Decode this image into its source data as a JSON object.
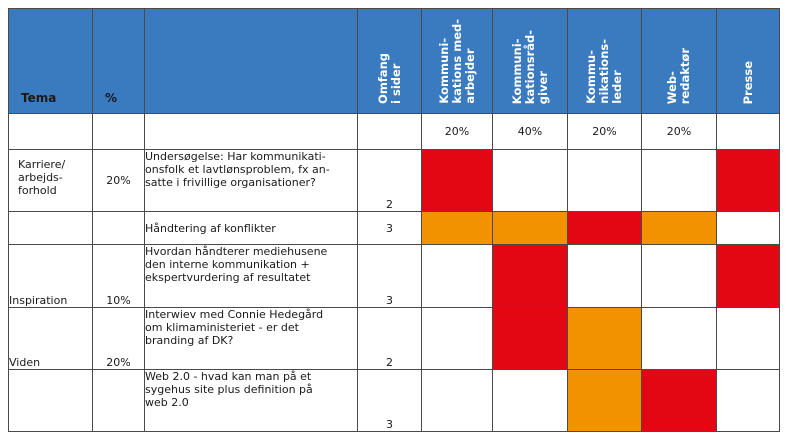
{
  "colors": {
    "header_bg": "#3a7abf",
    "red": "#e30613",
    "orange": "#f39200",
    "border": "#4a4a4a"
  },
  "headers": {
    "tema": "Tema",
    "pct": "%",
    "topic": "",
    "omfang": "Omfang\ni sider",
    "roles": [
      "Kommuni-\nkations med-\narbejder",
      "Kommuni-\nkationsråd-\ngiver",
      "Kommu-\nnikations-\nleder",
      "Web-\nredaktør",
      "Presse"
    ]
  },
  "role_pcts": [
    "20%",
    "40%",
    "20%",
    "20%",
    ""
  ],
  "rows": [
    {
      "tema": "Karriere/\narbejds-\nforhold",
      "pct": "20%",
      "text": "Undersøgelse: Har kommunikati-\nonsfolk et lavtlønsproblem, fx an-\nsatte i frivillige organisationer?",
      "omfang": "2",
      "cells": [
        "red",
        "white",
        "white",
        "white",
        "red"
      ]
    },
    {
      "tema": "",
      "pct": "",
      "text": "Håndtering af konflikter",
      "omfang": "3",
      "cells": [
        "orange",
        "orange",
        "red",
        "orange",
        "white"
      ]
    },
    {
      "tema": "Inspiration",
      "pct": "10%",
      "text": "Hvordan håndterer mediehusene\nden interne kommunikation +\nekspertvurdering af resultatet",
      "omfang": "3",
      "cells": [
        "white",
        "red",
        "white",
        "white",
        "red"
      ]
    },
    {
      "tema": "Viden",
      "pct": "20%",
      "text": "Interwiev med Connie Hedegård\nom klimaministeriet - er det\nbranding af DK?",
      "omfang": "2",
      "cells": [
        "white",
        "red",
        "orange",
        "white",
        "white"
      ]
    },
    {
      "tema": "",
      "pct": "",
      "text": "Web 2.0 - hvad kan man på et\nsygehus site plus definition på\nweb 2.0",
      "omfang": "3",
      "cells": [
        "white",
        "white",
        "orange",
        "red",
        "white"
      ]
    }
  ]
}
